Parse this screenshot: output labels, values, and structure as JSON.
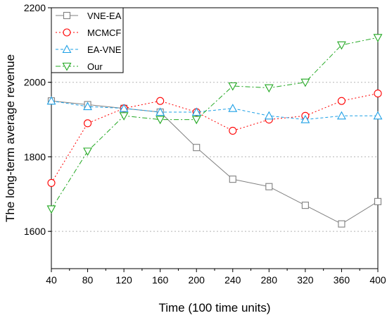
{
  "chart_data": {
    "type": "line",
    "xlabel": "Time (100 time units)",
    "ylabel": "The long-term average revenue",
    "xlim": [
      40,
      400
    ],
    "ylim": [
      1500,
      2200
    ],
    "x_ticks": [
      40,
      80,
      120,
      160,
      200,
      240,
      280,
      320,
      360,
      400
    ],
    "y_ticks": [
      1600,
      1800,
      2000,
      2200
    ],
    "grid": "horizontal-dotted",
    "legend_position": "top-left",
    "x": [
      40,
      80,
      120,
      160,
      200,
      240,
      280,
      320,
      360,
      400
    ],
    "series": [
      {
        "name": "VNE-EA",
        "values": [
          1950,
          1940,
          1930,
          1920,
          1825,
          1740,
          1720,
          1670,
          1620,
          1680
        ],
        "color": "#808080",
        "marker": "square",
        "dash": "solid"
      },
      {
        "name": "MCMCF",
        "values": [
          1730,
          1890,
          1930,
          1950,
          1920,
          1870,
          1900,
          1910,
          1950,
          1970
        ],
        "color": "#ff0000",
        "marker": "circle",
        "dash": "dot"
      },
      {
        "name": "EA-VNE",
        "values": [
          1950,
          1935,
          1930,
          1920,
          1920,
          1930,
          1910,
          1900,
          1910,
          1910
        ],
        "color": "#1ea0e6",
        "marker": "triangle-up",
        "dash": "dash"
      },
      {
        "name": "Our",
        "values": [
          1660,
          1815,
          1910,
          1900,
          1900,
          1990,
          1985,
          2000,
          2100,
          2120
        ],
        "color": "#22a822",
        "marker": "triangle-down",
        "dash": "dashdot"
      }
    ]
  }
}
